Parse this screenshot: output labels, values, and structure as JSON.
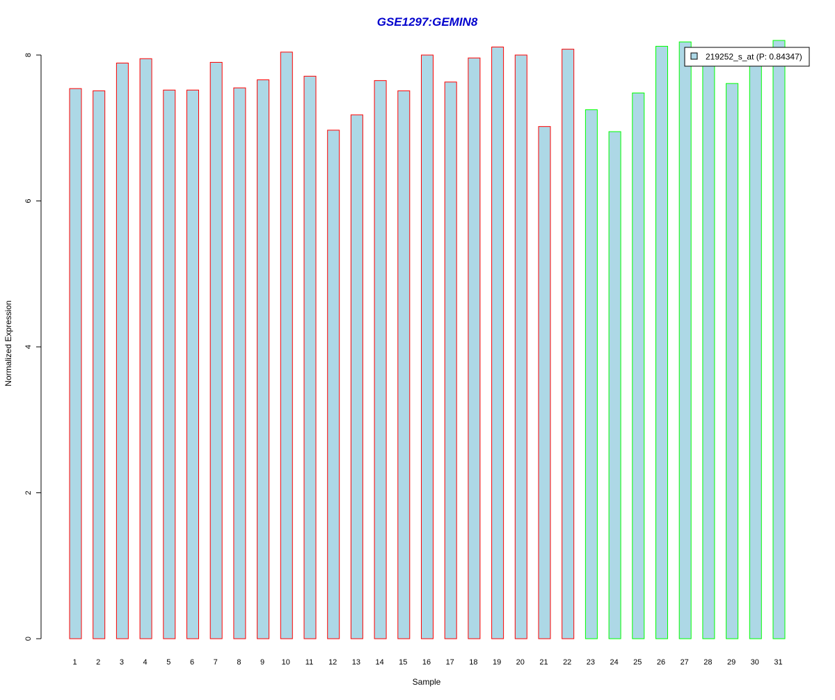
{
  "chart_data": {
    "type": "bar",
    "title": "GSE1297:GEMIN8",
    "xlabel": "Sample",
    "ylabel": "Normalized Expression",
    "ylim": [
      0,
      8.2
    ],
    "yticks": [
      0,
      2,
      4,
      6,
      8
    ],
    "categories": [
      "1",
      "2",
      "3",
      "4",
      "5",
      "6",
      "7",
      "8",
      "9",
      "10",
      "11",
      "12",
      "13",
      "14",
      "15",
      "16",
      "17",
      "18",
      "19",
      "20",
      "21",
      "22",
      "23",
      "24",
      "25",
      "26",
      "27",
      "28",
      "29",
      "30",
      "31"
    ],
    "values": [
      7.54,
      7.51,
      7.89,
      7.95,
      7.52,
      7.52,
      7.9,
      7.55,
      7.66,
      8.04,
      7.71,
      6.97,
      7.18,
      7.65,
      7.51,
      8.0,
      7.63,
      7.96,
      8.11,
      8.0,
      7.02,
      8.08,
      7.25,
      6.95,
      7.48,
      8.12,
      8.18,
      7.92,
      7.61,
      7.88,
      8.2
    ],
    "group": [
      "a",
      "a",
      "a",
      "a",
      "a",
      "a",
      "a",
      "a",
      "a",
      "a",
      "a",
      "a",
      "a",
      "a",
      "a",
      "a",
      "a",
      "a",
      "a",
      "a",
      "a",
      "a",
      "b",
      "b",
      "b",
      "b",
      "b",
      "b",
      "b",
      "b",
      "b"
    ],
    "colors": {
      "fill": "#add8e6",
      "group_a_border": "#ff0000",
      "group_b_border": "#00ff00",
      "title": "#0000cd",
      "axis": "#000000"
    },
    "legend": {
      "label": "219252_s_at (P: 0.84347)",
      "placement": "top-right"
    },
    "grid": false
  }
}
